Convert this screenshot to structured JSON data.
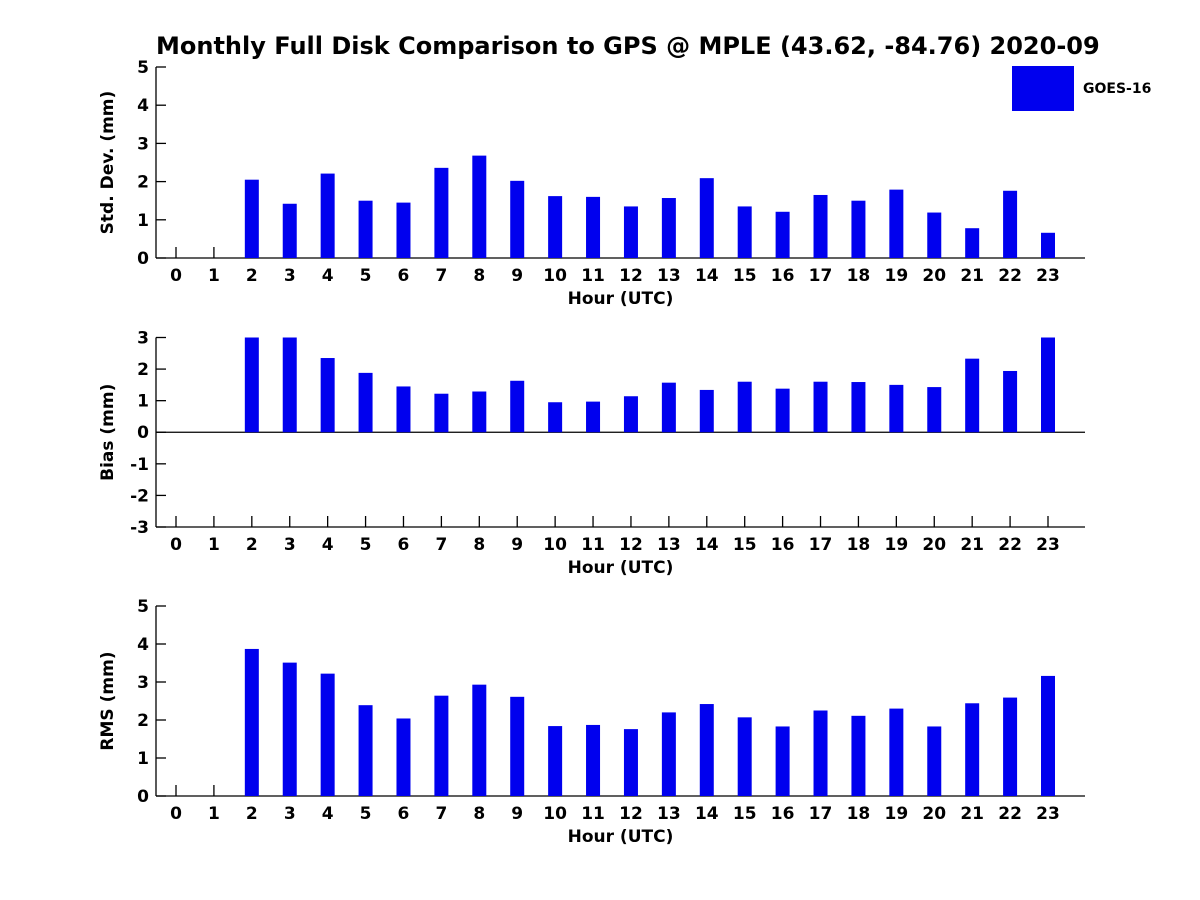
{
  "title": "Monthly Full Disk Comparison to GPS @ MPLE (43.62, -84.76) 2020-09",
  "legend": {
    "label": "GOES-16",
    "color": "#0000EE",
    "position": "top-right"
  },
  "colors": {
    "bar": "#0000EE",
    "axis": "#000000",
    "background": "#FFFFFF"
  },
  "chart_data": [
    {
      "type": "bar",
      "subplot": "std-dev",
      "ylabel": "Std. Dev. (mm)",
      "xlabel": "Hour (UTC)",
      "series_name": "GOES-16",
      "categories": [
        0,
        1,
        2,
        3,
        4,
        5,
        6,
        7,
        8,
        9,
        10,
        11,
        12,
        13,
        14,
        15,
        16,
        17,
        18,
        19,
        20,
        21,
        22,
        23
      ],
      "values": [
        null,
        null,
        2.05,
        1.42,
        2.21,
        1.5,
        1.45,
        2.36,
        2.68,
        2.02,
        1.62,
        1.6,
        1.35,
        1.57,
        2.09,
        1.35,
        1.21,
        1.65,
        1.5,
        1.79,
        1.19,
        0.78,
        1.76,
        0.66
      ],
      "ylim": [
        0,
        5
      ],
      "yticks": [
        0,
        1,
        2,
        3,
        4,
        5
      ],
      "grid": false,
      "zero_line": false
    },
    {
      "type": "bar",
      "subplot": "bias",
      "ylabel": "Bias (mm)",
      "xlabel": "Hour (UTC)",
      "series_name": "GOES-16",
      "categories": [
        0,
        1,
        2,
        3,
        4,
        5,
        6,
        7,
        8,
        9,
        10,
        11,
        12,
        13,
        14,
        15,
        16,
        17,
        18,
        19,
        20,
        21,
        22,
        23
      ],
      "values": [
        null,
        null,
        3.0,
        3.0,
        2.35,
        1.88,
        1.45,
        1.22,
        1.29,
        1.63,
        0.95,
        0.97,
        1.14,
        1.57,
        1.34,
        1.6,
        1.38,
        1.6,
        1.59,
        1.5,
        1.43,
        2.33,
        1.94,
        3.0
      ],
      "ylim": [
        -3,
        3
      ],
      "yticks": [
        -3,
        -2,
        -1,
        0,
        1,
        2,
        3
      ],
      "grid": false,
      "zero_line": true
    },
    {
      "type": "bar",
      "subplot": "rms",
      "ylabel": "RMS (mm)",
      "xlabel": "Hour (UTC)",
      "series_name": "GOES-16",
      "categories": [
        0,
        1,
        2,
        3,
        4,
        5,
        6,
        7,
        8,
        9,
        10,
        11,
        12,
        13,
        14,
        15,
        16,
        17,
        18,
        19,
        20,
        21,
        22,
        23
      ],
      "values": [
        null,
        null,
        3.87,
        3.51,
        3.22,
        2.39,
        2.04,
        2.64,
        2.93,
        2.61,
        1.84,
        1.87,
        1.76,
        2.2,
        2.42,
        2.07,
        1.83,
        2.25,
        2.11,
        2.3,
        1.83,
        2.44,
        2.59,
        3.16
      ],
      "ylim": [
        0,
        5
      ],
      "yticks": [
        0,
        1,
        2,
        3,
        4,
        5
      ],
      "grid": false,
      "zero_line": false
    }
  ]
}
